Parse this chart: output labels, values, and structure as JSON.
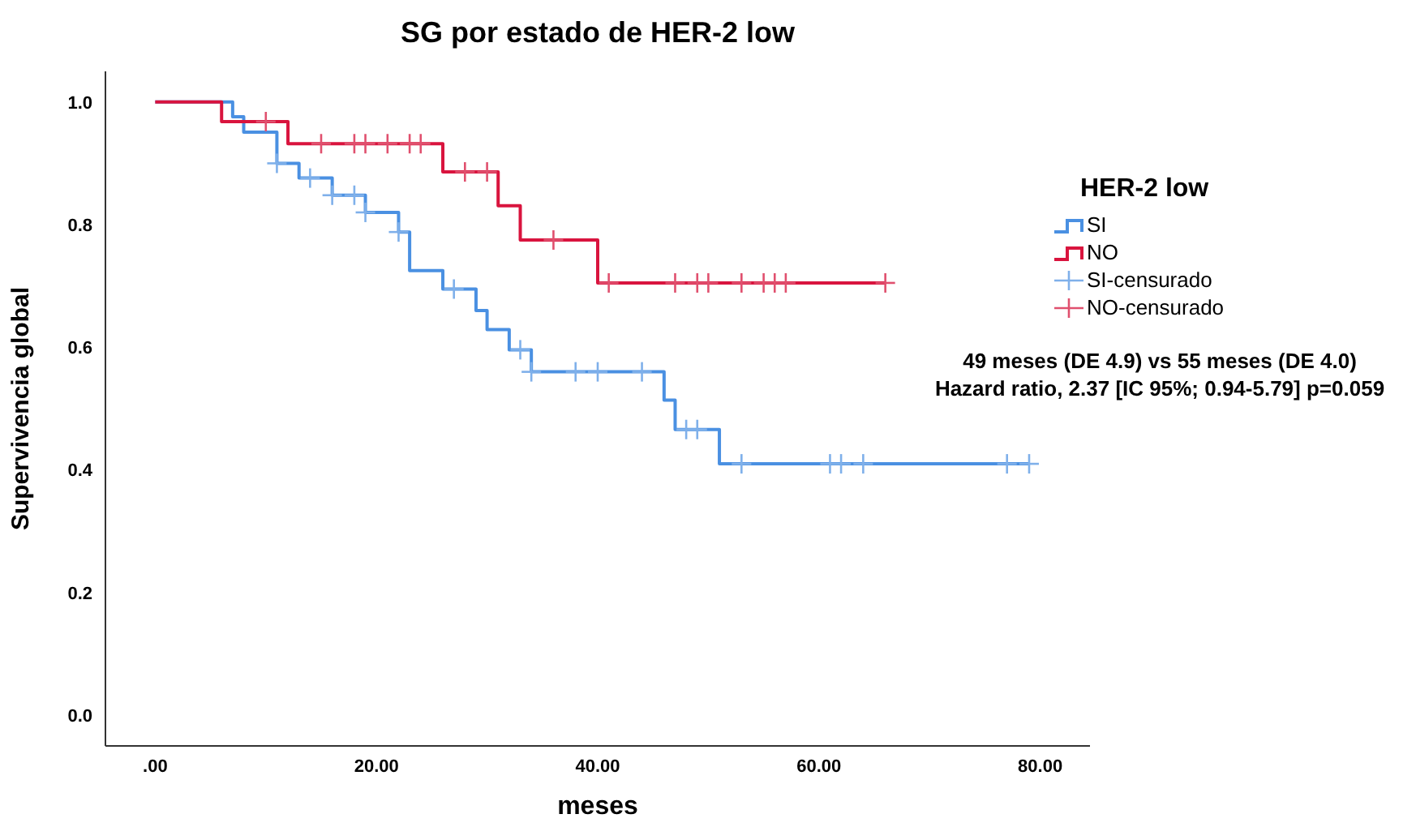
{
  "chart_data": {
    "type": "step",
    "title": "SG por estado de HER-2 low",
    "xlabel": "meses",
    "ylabel": "Supervivencia global",
    "legend_title": "HER-2 low",
    "legend": "right",
    "grid": false,
    "xlim": [
      -4.5,
      84.5
    ],
    "xticks": [
      {
        "value": 0,
        "label": ".00"
      },
      {
        "value": 20,
        "label": "20.00"
      },
      {
        "value": 40,
        "label": "40.00"
      },
      {
        "value": 60,
        "label": "60.00"
      },
      {
        "value": 80,
        "label": "80.00"
      }
    ],
    "ylim": [
      -0.05,
      1.05
    ],
    "yticks": [
      {
        "value": 0,
        "label": "0.0"
      },
      {
        "value": 0.2,
        "label": "0.2"
      },
      {
        "value": 0.4,
        "label": "0.4"
      },
      {
        "value": 0.6,
        "label": "0.6"
      },
      {
        "value": 0.8,
        "label": "0.8"
      },
      {
        "value": 1,
        "label": "1.0"
      }
    ],
    "annotations": [
      "49 meses (DE 4.9) vs 55 meses (DE 4.0)",
      "Hazard ratio, 2.37 [IC 95%; 0.94-5.79] p=0.059"
    ],
    "series": [
      {
        "name": "SI",
        "color": "#4a90e2",
        "marker": "none",
        "line_style": "solid",
        "x": [
          0,
          7,
          8,
          11,
          13,
          16,
          19,
          22,
          23,
          26,
          29,
          30,
          32,
          34,
          46,
          47,
          51,
          79
        ],
        "values": [
          1,
          0.976,
          0.951,
          0.9,
          0.876,
          0.848,
          0.82,
          0.788,
          0.725,
          0.695,
          0.66,
          0.629,
          0.596,
          0.56,
          0.514,
          0.466,
          0.41,
          0.41
        ]
      },
      {
        "name": "NO",
        "color": "#d9143e",
        "marker": "none",
        "line_style": "solid",
        "x": [
          0,
          6,
          12,
          26,
          31,
          33,
          40,
          66
        ],
        "values": [
          1,
          0.968,
          0.932,
          0.886,
          0.831,
          0.775,
          0.705,
          0.705
        ]
      },
      {
        "name": "SI-censurado",
        "type": "scatter",
        "color": "#7fb0ea",
        "marker": "cross",
        "x": [
          11,
          14,
          16,
          18,
          19,
          22,
          27,
          33,
          34,
          38,
          40,
          44,
          48,
          49,
          53,
          61,
          62,
          64,
          77,
          79
        ],
        "values": [
          0.9,
          0.876,
          0.848,
          0.848,
          0.82,
          0.788,
          0.695,
          0.596,
          0.56,
          0.56,
          0.56,
          0.56,
          0.466,
          0.466,
          0.41,
          0.41,
          0.41,
          0.41,
          0.41,
          0.41
        ]
      },
      {
        "name": "NO-censurado",
        "type": "scatter",
        "color": "#e0506e",
        "marker": "cross",
        "x": [
          10,
          15,
          18,
          19,
          21,
          23,
          24,
          28,
          30,
          36,
          41,
          47,
          49,
          50,
          53,
          55,
          56,
          57,
          66
        ],
        "values": [
          0.968,
          0.932,
          0.932,
          0.932,
          0.932,
          0.932,
          0.932,
          0.886,
          0.886,
          0.775,
          0.705,
          0.705,
          0.705,
          0.705,
          0.705,
          0.705,
          0.705,
          0.705,
          0.705
        ]
      }
    ]
  }
}
